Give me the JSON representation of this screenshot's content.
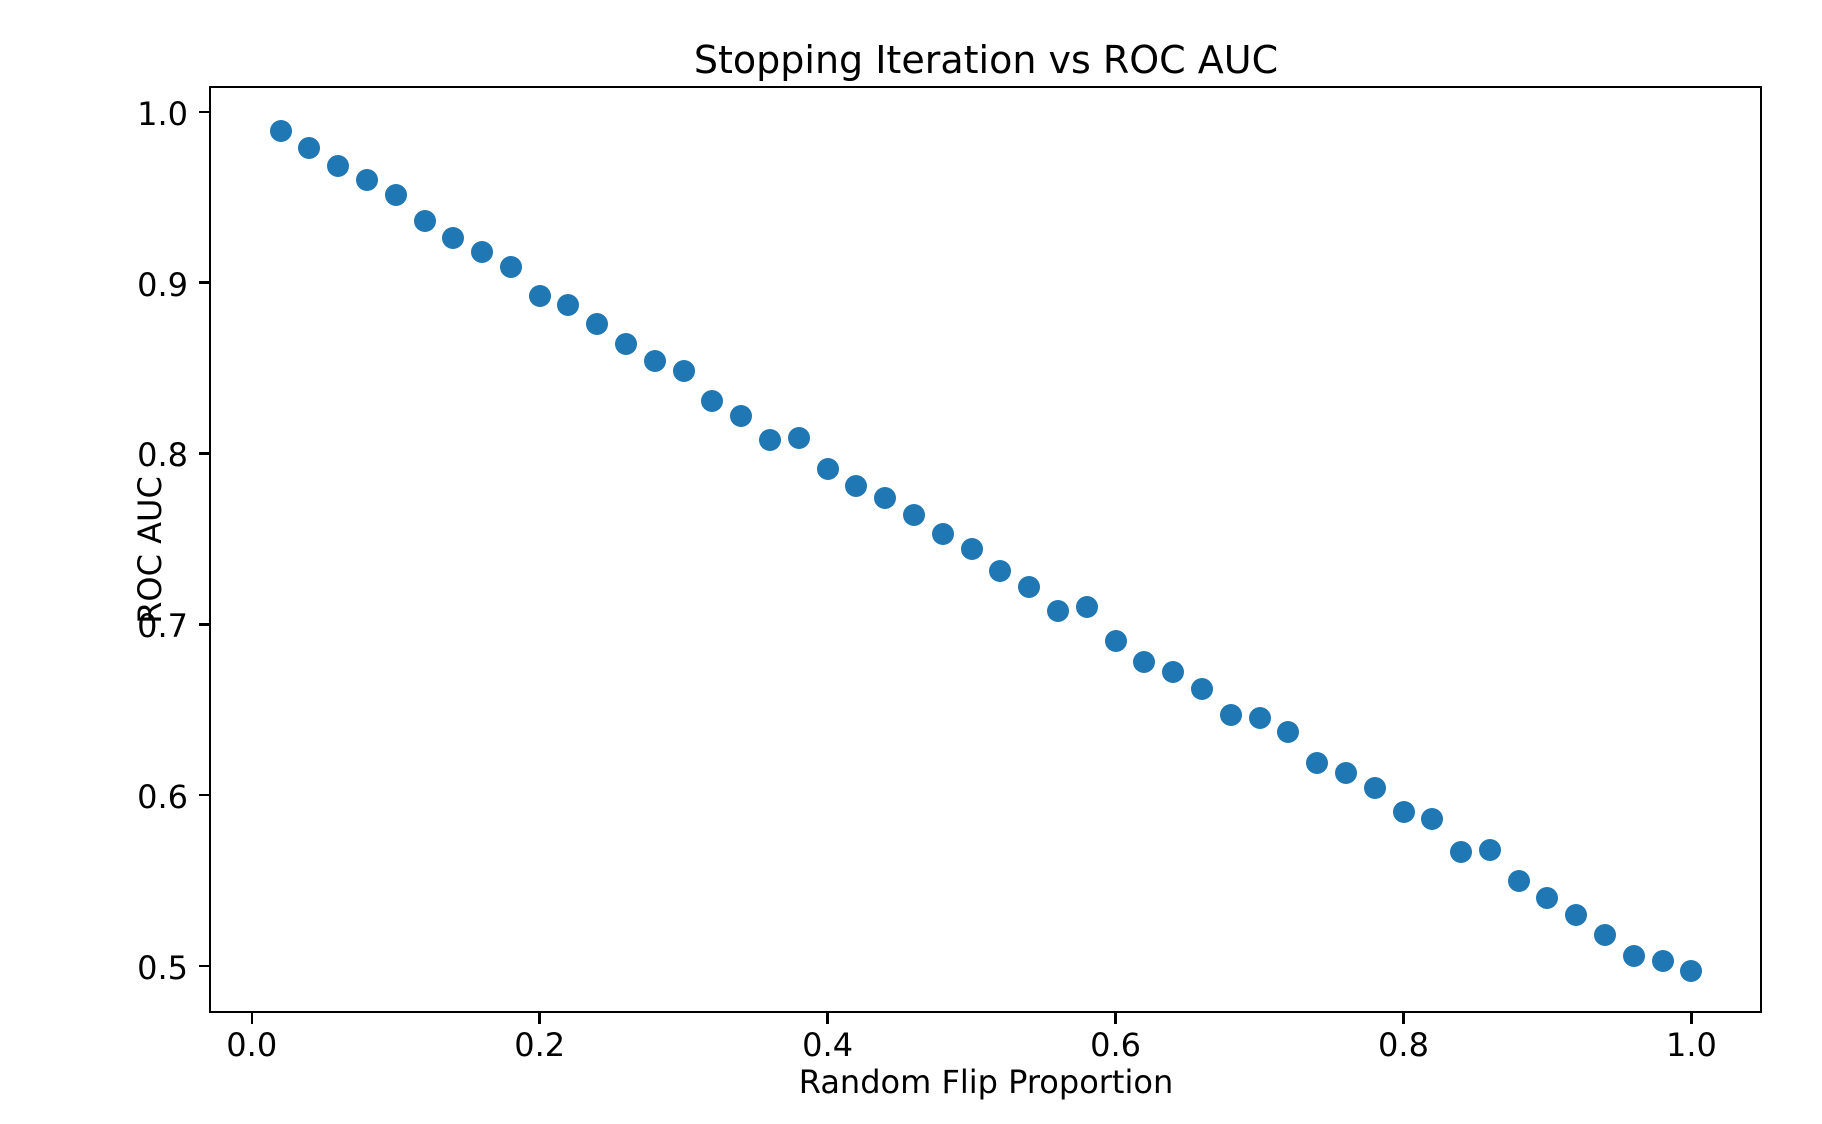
{
  "chart_data": {
    "type": "scatter",
    "title": "Stopping Iteration vs ROC AUC",
    "xlabel": "Random Flip Proportion",
    "ylabel": "ROC AUC",
    "xlim": [
      -0.029,
      1.049
    ],
    "ylim": [
      0.4725,
      1.0145
    ],
    "grid": false,
    "legend_position": "none",
    "marker_color": "#1f77b4",
    "background_color": "#ffffff",
    "text_color": "#000000",
    "x_ticks": [
      0.0,
      0.2,
      0.4,
      0.6,
      0.8,
      1.0
    ],
    "x_tick_labels": [
      "0.0",
      "0.2",
      "0.4",
      "0.6",
      "0.8",
      "1.0"
    ],
    "y_ticks": [
      0.5,
      0.6,
      0.7,
      0.8,
      0.9,
      1.0
    ],
    "y_tick_labels": [
      "0.5",
      "0.6",
      "0.7",
      "0.8",
      "0.9",
      "1.0"
    ],
    "x": [
      0.02,
      0.04,
      0.06,
      0.08,
      0.1,
      0.12,
      0.14,
      0.16,
      0.18,
      0.2,
      0.22,
      0.24,
      0.26,
      0.28,
      0.3,
      0.32,
      0.34,
      0.36,
      0.38,
      0.4,
      0.42,
      0.44,
      0.46,
      0.48,
      0.5,
      0.52,
      0.54,
      0.56,
      0.58,
      0.6,
      0.62,
      0.64,
      0.66,
      0.68,
      0.7,
      0.72,
      0.74,
      0.76,
      0.78,
      0.8,
      0.82,
      0.84,
      0.86,
      0.88,
      0.9,
      0.92,
      0.94,
      0.96,
      0.98,
      1.0
    ],
    "y": [
      0.989,
      0.979,
      0.968,
      0.96,
      0.951,
      0.936,
      0.926,
      0.918,
      0.909,
      0.892,
      0.887,
      0.876,
      0.864,
      0.854,
      0.848,
      0.831,
      0.822,
      0.808,
      0.809,
      0.791,
      0.781,
      0.774,
      0.764,
      0.753,
      0.744,
      0.731,
      0.722,
      0.708,
      0.71,
      0.69,
      0.678,
      0.672,
      0.662,
      0.647,
      0.645,
      0.637,
      0.619,
      0.613,
      0.604,
      0.59,
      0.586,
      0.567,
      0.568,
      0.55,
      0.54,
      0.53,
      0.518,
      0.506,
      0.503,
      0.497
    ]
  }
}
